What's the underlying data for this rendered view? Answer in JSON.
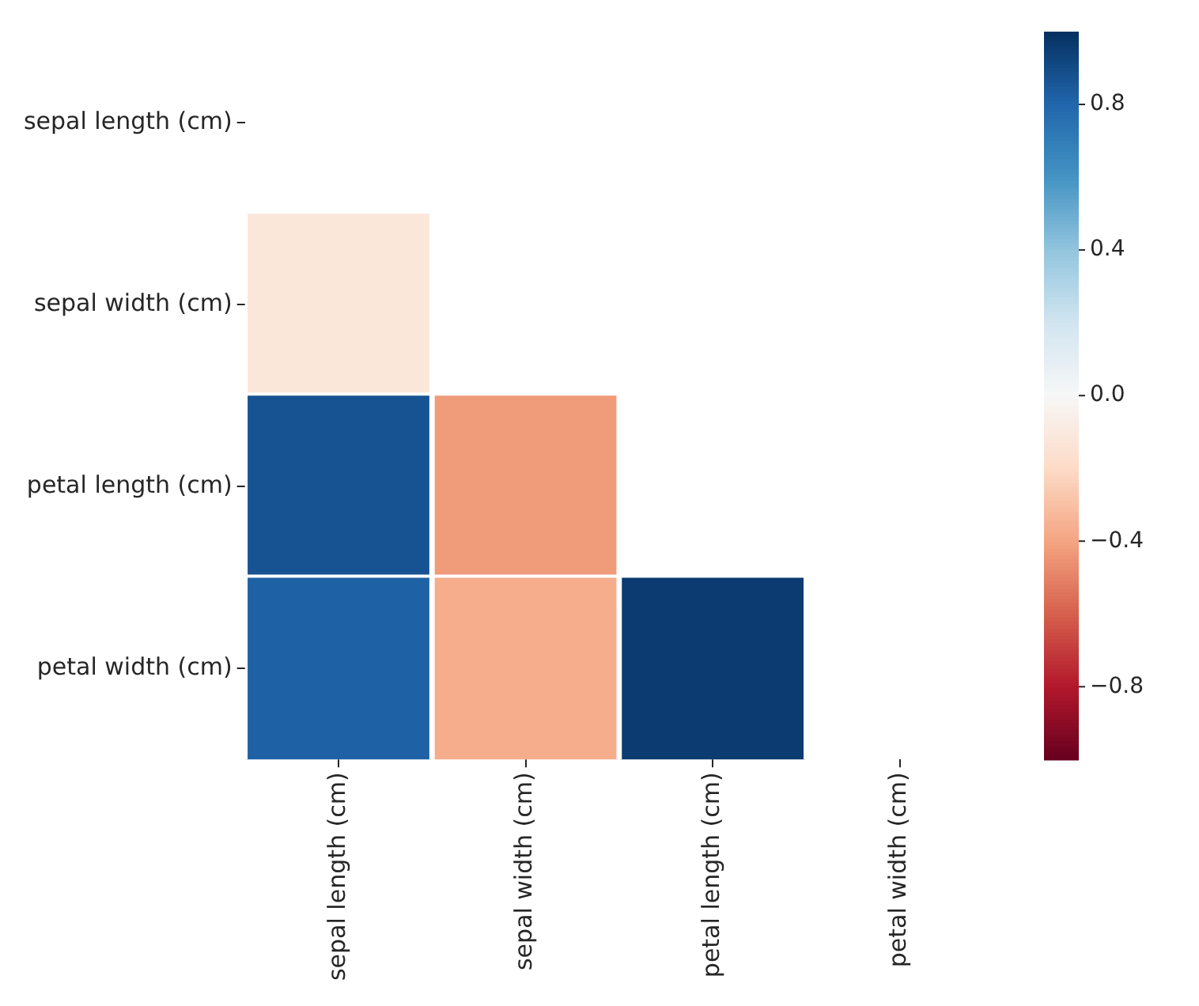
{
  "chart_data": {
    "type": "heatmap",
    "categories": [
      "sepal length (cm)",
      "sepal width (cm)",
      "petal length (cm)",
      "petal width (cm)"
    ],
    "y_categories": [
      "sepal length (cm)",
      "sepal width (cm)",
      "petal length (cm)",
      "petal width (cm)"
    ],
    "cells": [
      [
        null,
        null,
        null,
        null
      ],
      [
        -0.12,
        null,
        null,
        null
      ],
      [
        0.87,
        -0.43,
        null,
        null
      ],
      [
        0.82,
        -0.37,
        0.96,
        null
      ]
    ],
    "clim": [
      -1,
      1
    ],
    "cticks": [
      {
        "value": -0.8,
        "label": "−0.8"
      },
      {
        "value": -0.4,
        "label": "−0.4"
      },
      {
        "value": 0,
        "label": "0.0"
      },
      {
        "value": 0.4,
        "label": "0.4"
      },
      {
        "value": 0.8,
        "label": "0.8"
      }
    ]
  }
}
